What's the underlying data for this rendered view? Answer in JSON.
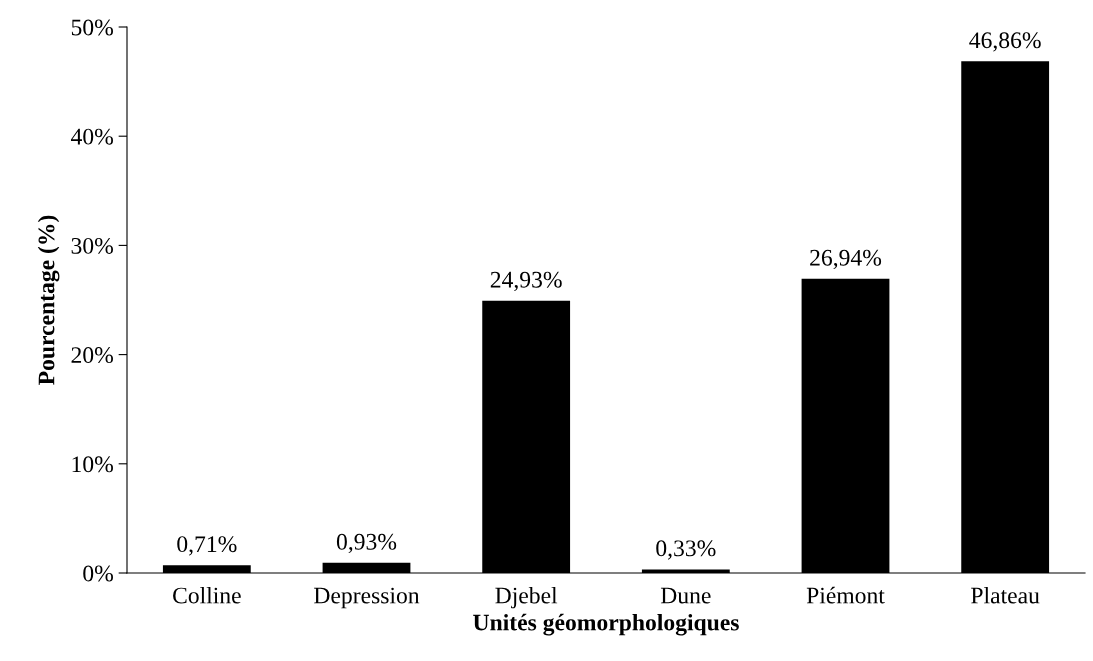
{
  "chart_data": {
    "type": "bar",
    "xlabel": "Unités géomorphologiques",
    "ylabel": "Pourcentage (%)",
    "categories": [
      "Colline",
      "Depression",
      "Djebel",
      "Dune",
      "Piémont",
      "Plateau"
    ],
    "values": [
      0.71,
      0.93,
      24.93,
      0.33,
      26.94,
      46.86
    ],
    "value_labels": [
      "0,71%",
      "0,93%",
      "24,93%",
      "0,33%",
      "26,94%",
      "46,86%"
    ],
    "color": "#000000",
    "ylim": [
      0,
      50
    ],
    "yticks": [
      {
        "value": 0,
        "label": "0%"
      },
      {
        "value": 10,
        "label": "10%"
      },
      {
        "value": 20,
        "label": "20%"
      },
      {
        "value": 30,
        "label": "30%"
      },
      {
        "value": 40,
        "label": "40%"
      },
      {
        "value": 50,
        "label": "50%"
      }
    ],
    "grid": false,
    "legend": false
  }
}
